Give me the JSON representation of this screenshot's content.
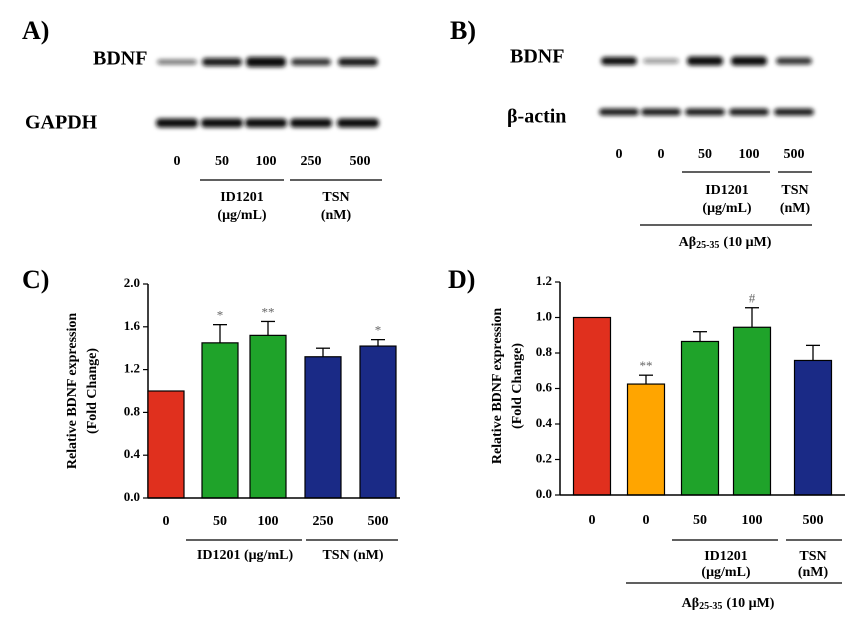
{
  "blot_a": {
    "panel_label": "A)",
    "target": "BDNF",
    "loading_control": "GAPDH",
    "lanes": [
      "0",
      "50",
      "100",
      "250",
      "500"
    ],
    "groups": [
      {
        "name": "ID1201",
        "unit": "(μg/mL)"
      },
      {
        "name": "TSN",
        "unit": "(nM)"
      }
    ]
  },
  "blot_b": {
    "panel_label": "B)",
    "target": "BDNF",
    "loading_control": "β-actin",
    "lanes": [
      "0",
      "0",
      "50",
      "100",
      "500"
    ],
    "groups": [
      {
        "name": "ID1201",
        "unit": "(μg/mL)"
      },
      {
        "name": "TSN",
        "unit": "(nM)"
      }
    ],
    "treatment": {
      "main": "Aβ",
      "sub": "25-35",
      "rest": "(10 μM)"
    }
  },
  "chart_data": [
    {
      "type": "bar",
      "panel_label": "C)",
      "y_label": [
        "Relative BDNF expression",
        "(Fold Change)"
      ],
      "categories": [
        "0",
        "50",
        "100",
        "250",
        "500"
      ],
      "groups": [
        "ID1201 (μg/mL)",
        "TSN (nM)"
      ],
      "series": [
        {
          "values": [
            1.0,
            1.45,
            1.52,
            1.32,
            1.42
          ],
          "errors": [
            null,
            0.17,
            0.13,
            0.08,
            0.06
          ],
          "colors": [
            "#e0301e",
            "#1fa32a",
            "#1fa32a",
            "#1a2a86",
            "#1a2a86"
          ],
          "significance": [
            null,
            "*",
            "**",
            null,
            "*"
          ]
        }
      ],
      "ylim": [
        0,
        2.0
      ],
      "yticks": [
        {
          "value": 0,
          "label": "0.0"
        },
        {
          "value": 0.4,
          "label": "0.4"
        },
        {
          "value": 0.8,
          "label": "0.8"
        },
        {
          "value": 1.2,
          "label": "1.2"
        },
        {
          "value": 1.6,
          "label": "1.6"
        },
        {
          "value": 2.0,
          "label": "2.0"
        }
      ]
    },
    {
      "type": "bar",
      "panel_label": "D)",
      "y_label": [
        "Relative BDNF expression",
        "(Fold Change)"
      ],
      "categories": [
        "0",
        "0",
        "50",
        "100",
        "500"
      ],
      "groups": [
        {
          "name": "ID1201",
          "unit": "(μg/mL)"
        },
        {
          "name": "TSN",
          "unit": "(nM)"
        }
      ],
      "treatment": {
        "main": "Aβ",
        "sub": "25-35",
        "rest": "(10 μM)"
      },
      "series": [
        {
          "values": [
            1.0,
            0.625,
            0.865,
            0.945,
            0.758
          ],
          "errors": [
            null,
            0.05,
            0.055,
            0.11,
            0.085
          ],
          "colors": [
            "#e0301e",
            "#ffa500",
            "#1fa32a",
            "#1fa32a",
            "#1a2a86"
          ],
          "significance": [
            null,
            "**",
            null,
            "#",
            null
          ]
        }
      ],
      "ylim": [
        0,
        1.2
      ],
      "yticks": [
        {
          "value": 0,
          "label": "0.0"
        },
        {
          "value": 0.2,
          "label": "0.2"
        },
        {
          "value": 0.4,
          "label": "0.4"
        },
        {
          "value": 0.6,
          "label": "0.6"
        },
        {
          "value": 0.8,
          "label": "0.8"
        },
        {
          "value": 1.0,
          "label": "1.0"
        },
        {
          "value": 1.2,
          "label": "1.2"
        }
      ]
    }
  ]
}
